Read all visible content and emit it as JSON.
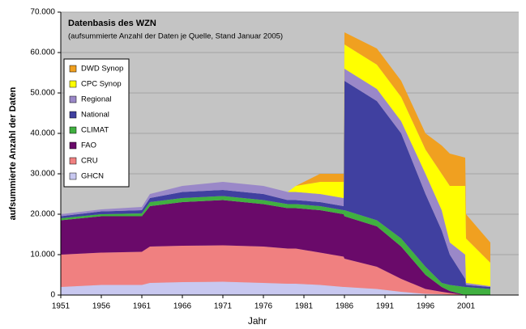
{
  "chart_data": {
    "type": "stacked-area",
    "title": "Datenbasis des WZN",
    "subtitle": "(aufsummierte Anzahl der Daten je Quelle, Stand Januar 2005)",
    "x_label": "Jahr",
    "y_label": "aufsummierte Anzahl der Daten",
    "x": [
      1951,
      1956,
      1961,
      1962,
      1966,
      1971,
      1976,
      1979,
      1980,
      1983,
      1985.9,
      1986,
      1990,
      1993,
      1996,
      1998,
      1999,
      2000.9,
      2001,
      2004
    ],
    "series": [
      {
        "name": "GHCN",
        "color": "#c8c8f0",
        "values": [
          2000,
          2500,
          2500,
          3000,
          3200,
          3300,
          3000,
          2800,
          2800,
          2500,
          2000,
          2000,
          1500,
          800,
          300,
          200,
          100,
          0,
          0,
          0
        ]
      },
      {
        "name": "CRU",
        "color": "#f08080",
        "values": [
          8000,
          8000,
          8200,
          9000,
          9000,
          9000,
          9000,
          8700,
          8700,
          8000,
          7500,
          7000,
          5500,
          3200,
          1200,
          600,
          400,
          0,
          0,
          0
        ]
      },
      {
        "name": "FAO",
        "color": "#6a0a6a",
        "values": [
          8500,
          9000,
          8800,
          10000,
          10800,
          11200,
          10500,
          10000,
          10000,
          10500,
          10500,
          10500,
          10000,
          8000,
          3500,
          1200,
          500,
          0,
          0,
          0
        ]
      },
      {
        "name": "CLIMAT",
        "color": "#40b040",
        "values": [
          500,
          500,
          700,
          1000,
          1000,
          1000,
          1000,
          1000,
          1000,
          1000,
          1000,
          1500,
          1500,
          2000,
          2000,
          1000,
          1500,
          2000,
          2000,
          1500
        ]
      },
      {
        "name": "National",
        "color": "#4040a0",
        "values": [
          500,
          700,
          800,
          1000,
          1500,
          1500,
          1500,
          1000,
          1000,
          1000,
          1000,
          32000,
          29500,
          26000,
          18000,
          13000,
          7500,
          2000,
          500,
          500
        ]
      },
      {
        "name": "Regional",
        "color": "#9a88c8",
        "values": [
          500,
          500,
          800,
          1000,
          1500,
          2000,
          2000,
          2000,
          2000,
          2000,
          2000,
          3000,
          3000,
          3000,
          5000,
          5000,
          3000,
          6000,
          500,
          200
        ]
      },
      {
        "name": "CPC Synop",
        "color": "#ffff00",
        "values": [
          0,
          0,
          0,
          0,
          0,
          0,
          0,
          0,
          1500,
          3000,
          4000,
          6000,
          6000,
          6000,
          6000,
          9000,
          14000,
          17000,
          11000,
          5800
        ]
      },
      {
        "name": "DWD Synop",
        "color": "#f0a020",
        "values": [
          0,
          0,
          0,
          0,
          0,
          0,
          0,
          0,
          0,
          2000,
          2000,
          3000,
          4000,
          4000,
          4000,
          7000,
          8000,
          7000,
          6000,
          5000
        ]
      }
    ],
    "xlim": [
      1951,
      2007.5
    ],
    "xticks": [
      1951,
      1956,
      1961,
      1966,
      1971,
      1976,
      1981,
      1986,
      1991,
      1996,
      2001
    ],
    "ylim": [
      0,
      70000
    ],
    "yticks": [
      0,
      {
        "value": 10000,
        "label": "10.000"
      },
      {
        "value": 20000,
        "label": "20.000"
      },
      {
        "value": 30000,
        "label": "30.000"
      },
      {
        "value": 40000,
        "label": "40.000"
      },
      {
        "value": 50000,
        "label": "50.000"
      },
      {
        "value": 60000,
        "label": "60.000"
      },
      {
        "value": 70000,
        "label": "70.000"
      }
    ],
    "grid": true,
    "legend": "upper left"
  }
}
